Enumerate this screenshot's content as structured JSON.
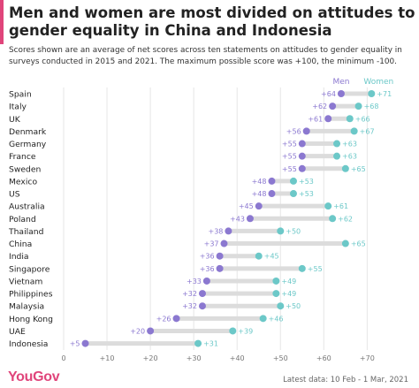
{
  "header": {
    "title": "Men and women are most divided on attitudes to gender equality in China and Indonesia",
    "subtitle": "Scores shown are an average of net scores across ten statements on attitudes to gender equality in surveys conducted in 2015 and 2021. The maximum possible score was +100, the minimum -100."
  },
  "footer": {
    "brand": "YouGov",
    "date": "Latest data: 10 Feb - 1 Mar, 2021"
  },
  "colors": {
    "men": "#8b78d0",
    "women": "#6cc8c8",
    "connector": "#dcdcdc",
    "brand": "#e0457b"
  },
  "chart_data": {
    "type": "dumbbell",
    "series": [
      {
        "name": "Men",
        "key": "men"
      },
      {
        "name": "Women",
        "key": "women"
      }
    ],
    "categories": [
      "Spain",
      "Italy",
      "UK",
      "Denmark",
      "Germany",
      "France",
      "Sweden",
      "Mexico",
      "US",
      "Australia",
      "Poland",
      "Thailand",
      "China",
      "India",
      "Singapore",
      "Vietnam",
      "Philippines",
      "Malaysia",
      "Hong Kong",
      "UAE",
      "Indonesia"
    ],
    "men": [
      64,
      62,
      61,
      56,
      55,
      55,
      55,
      48,
      48,
      45,
      43,
      38,
      37,
      36,
      36,
      33,
      32,
      32,
      26,
      20,
      5
    ],
    "women": [
      71,
      68,
      66,
      67,
      63,
      63,
      65,
      53,
      53,
      61,
      62,
      50,
      65,
      45,
      55,
      49,
      49,
      50,
      46,
      39,
      31
    ],
    "x_ticks": [
      "0",
      "+10",
      "+20",
      "+30",
      "+40",
      "+50",
      "+60",
      "+70"
    ],
    "xlim": [
      0,
      74
    ],
    "legend_position": "top-right",
    "grid": true
  }
}
